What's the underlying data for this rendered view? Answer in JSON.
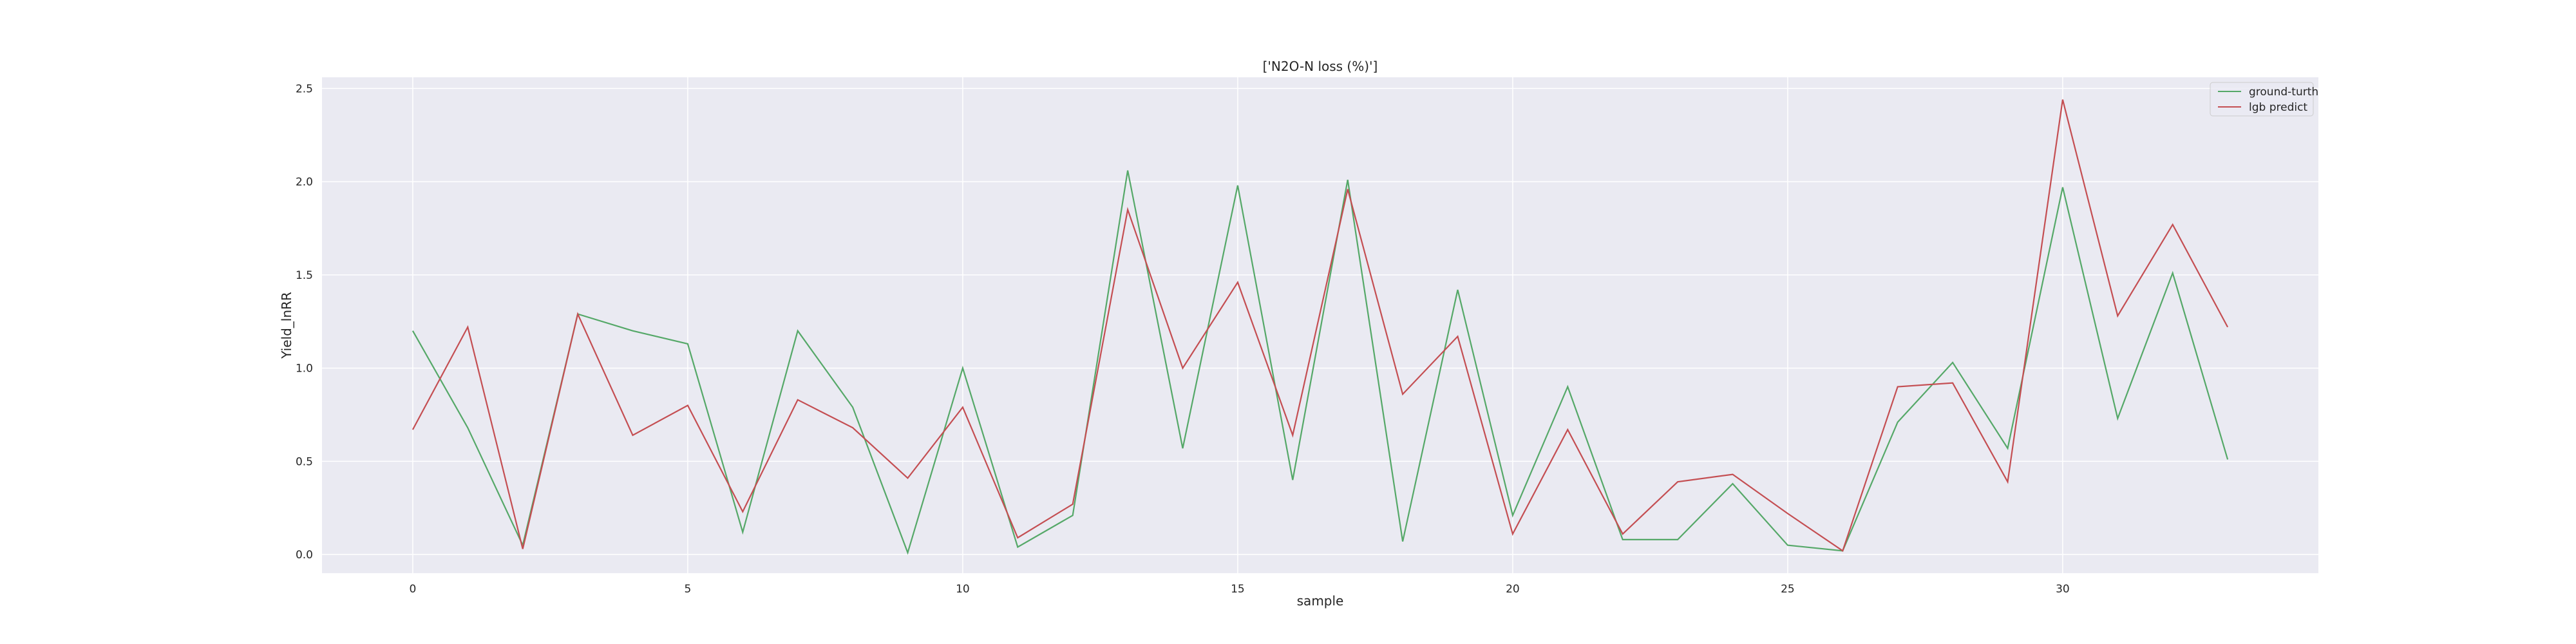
{
  "chart_data": {
    "type": "line",
    "title": "['N2O-N loss (%)']",
    "xlabel": "sample",
    "ylabel": "Yield_lnRR",
    "xlim": [
      -1.65,
      34.65
    ],
    "ylim": [
      -0.1,
      2.56
    ],
    "xticks": [
      0,
      5,
      10,
      15,
      20,
      25,
      30
    ],
    "yticks": [
      0.0,
      0.5,
      1.0,
      1.5,
      2.0,
      2.5
    ],
    "xtick_labels": [
      "0",
      "5",
      "10",
      "15",
      "20",
      "25",
      "30"
    ],
    "ytick_labels": [
      "0.0",
      "0.5",
      "1.0",
      "1.5",
      "2.0",
      "2.5"
    ],
    "grid": true,
    "legend_position": "top-right",
    "x": [
      0,
      1,
      2,
      3,
      4,
      5,
      6,
      7,
      8,
      9,
      10,
      11,
      12,
      13,
      14,
      15,
      16,
      17,
      18,
      19,
      20,
      21,
      22,
      23,
      24,
      25,
      26,
      27,
      28,
      29,
      30,
      31,
      32,
      33
    ],
    "series": [
      {
        "name": "ground-turth",
        "color": "#55a868",
        "values": [
          1.2,
          0.68,
          0.05,
          1.29,
          1.2,
          1.13,
          0.12,
          1.2,
          0.79,
          0.01,
          1.0,
          0.04,
          0.21,
          2.06,
          0.57,
          1.98,
          0.4,
          2.01,
          0.07,
          1.42,
          0.21,
          0.9,
          0.08,
          0.08,
          0.38,
          0.05,
          0.02,
          0.71,
          1.03,
          0.57,
          1.97,
          0.73,
          1.51,
          0.51
        ]
      },
      {
        "name": "lgb predict",
        "color": "#c44e52",
        "values": [
          0.67,
          1.22,
          0.03,
          1.29,
          0.64,
          0.8,
          0.23,
          0.83,
          0.68,
          0.41,
          0.79,
          0.09,
          0.27,
          1.85,
          1.0,
          1.46,
          0.64,
          1.96,
          0.86,
          1.17,
          0.11,
          0.67,
          0.11,
          0.39,
          0.43,
          0.22,
          0.02,
          0.9,
          0.92,
          0.39,
          2.44,
          1.28,
          1.77,
          1.22
        ]
      }
    ]
  },
  "colors": {
    "plot_background": "#eaeaf2",
    "grid": "#ffffff"
  }
}
